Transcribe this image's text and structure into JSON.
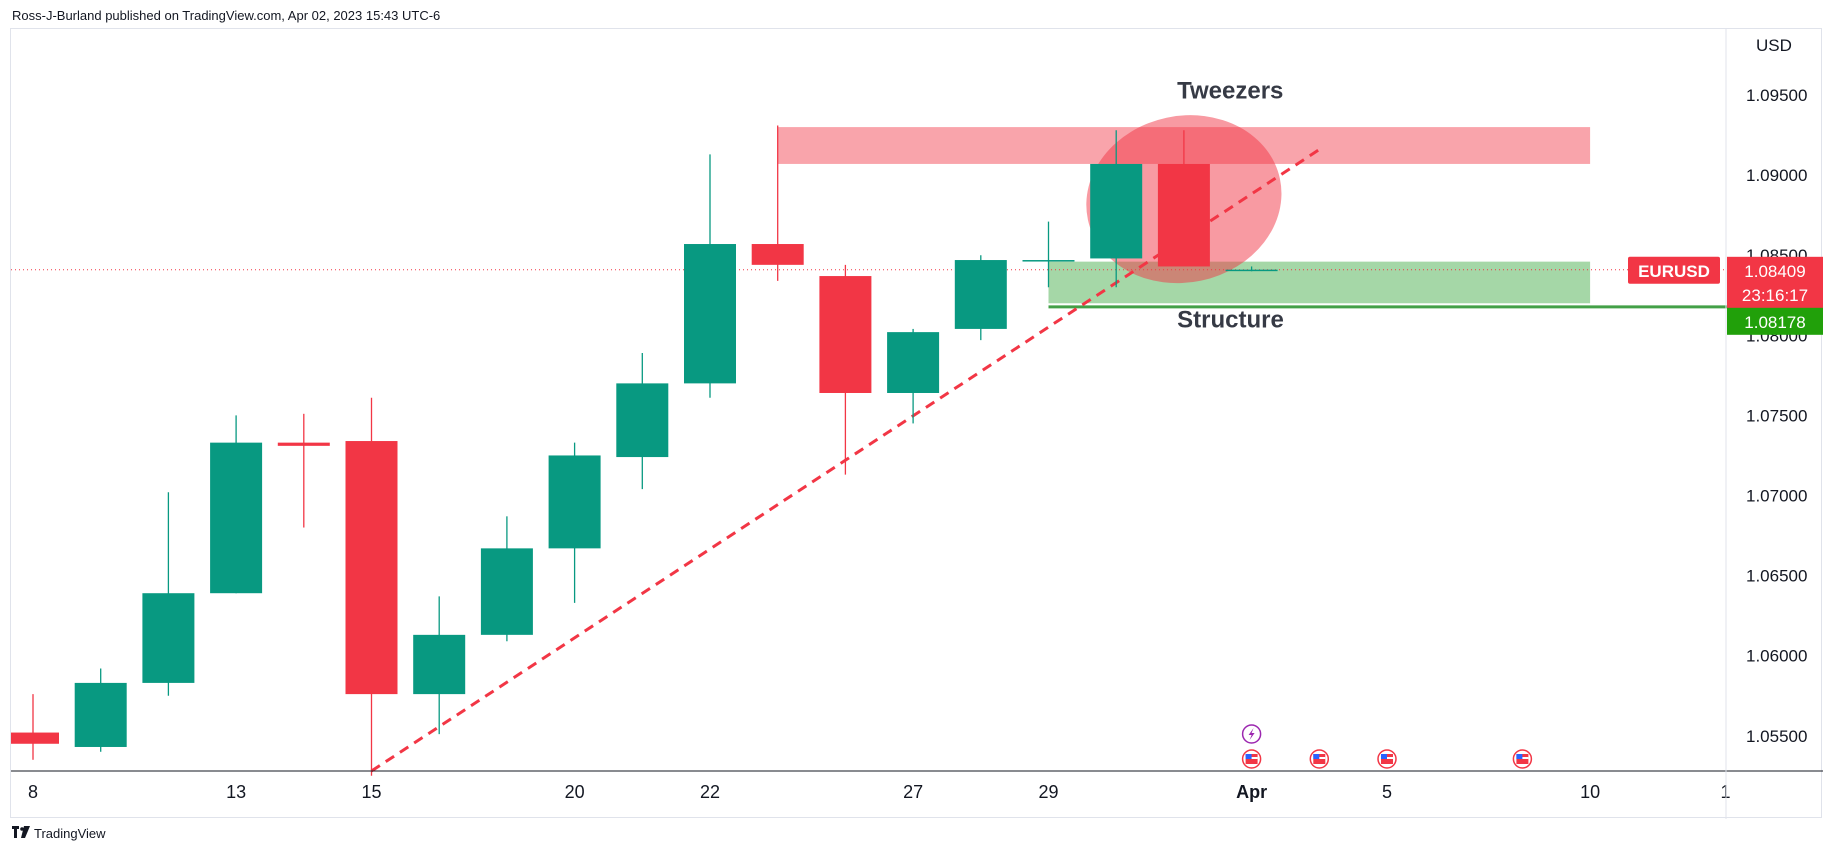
{
  "header": {
    "publisher_line": "Ross-J-Burland published on TradingView.com, Apr 02, 2023 15:43 UTC-6"
  },
  "footer": {
    "logo_icon": "tradingview-logo-icon",
    "brand": "TradingView"
  },
  "colors": {
    "bull": "#089981",
    "bear": "#f23645",
    "resistance_zone": "#f23645",
    "support_zone": "#4caf50",
    "trendline": "#f23645",
    "structure_line": "#43a047",
    "price_label_bg": "#f23645",
    "structure_label_bg": "#21a00a"
  },
  "chart_data": {
    "type": "candlestick",
    "symbol": "EURUSD",
    "currency_label": "USD",
    "ylim": [
      1.0528,
      1.0985
    ],
    "y_ticks": [
      "1.05500",
      "1.06000",
      "1.06500",
      "1.07000",
      "1.07500",
      "1.08000",
      "1.08500",
      "1.09000",
      "1.09500"
    ],
    "x_ticks": [
      {
        "index": 0,
        "label": "8"
      },
      {
        "index": 3,
        "label": "13"
      },
      {
        "index": 5,
        "label": "15"
      },
      {
        "index": 8,
        "label": "20"
      },
      {
        "index": 10,
        "label": "22"
      },
      {
        "index": 13,
        "label": "27"
      },
      {
        "index": 15,
        "label": "29"
      },
      {
        "index": 18,
        "label": "Apr",
        "bold": true
      },
      {
        "index": 20,
        "label": "5"
      },
      {
        "index": 23,
        "label": "10"
      },
      {
        "index": 25,
        "label": "1"
      }
    ],
    "candles": [
      {
        "date": "Mar 08",
        "open": 1.0552,
        "high": 1.0576,
        "low": 1.0535,
        "close": 1.0545
      },
      {
        "date": "Mar 09",
        "open": 1.0543,
        "high": 1.0592,
        "low": 1.054,
        "close": 1.0583
      },
      {
        "date": "Mar 10",
        "open": 1.0583,
        "high": 1.0702,
        "low": 1.0575,
        "close": 1.0639
      },
      {
        "date": "Mar 13",
        "open": 1.0639,
        "high": 1.075,
        "low": 1.0639,
        "close": 1.0733
      },
      {
        "date": "Mar 14",
        "open": 1.0733,
        "high": 1.0751,
        "low": 1.068,
        "close": 1.0731
      },
      {
        "date": "Mar 15",
        "open": 1.0734,
        "high": 1.0761,
        "low": 1.0525,
        "close": 1.0576
      },
      {
        "date": "Mar 16",
        "open": 1.0576,
        "high": 1.0637,
        "low": 1.0551,
        "close": 1.0613
      },
      {
        "date": "Mar 17",
        "open": 1.0613,
        "high": 1.0687,
        "low": 1.0609,
        "close": 1.0667
      },
      {
        "date": "Mar 20",
        "open": 1.0667,
        "high": 1.0733,
        "low": 1.0633,
        "close": 1.0725
      },
      {
        "date": "Mar 21",
        "open": 1.0724,
        "high": 1.0789,
        "low": 1.0704,
        "close": 1.077
      },
      {
        "date": "Mar 22",
        "open": 1.077,
        "high": 1.0913,
        "low": 1.0761,
        "close": 1.0857
      },
      {
        "date": "Mar 23",
        "open": 1.0857,
        "high": 1.0931,
        "low": 1.0834,
        "close": 1.0844
      },
      {
        "date": "Mar 24",
        "open": 1.0837,
        "high": 1.0844,
        "low": 1.0713,
        "close": 1.0764
      },
      {
        "date": "Mar 27",
        "open": 1.0764,
        "high": 1.0804,
        "low": 1.0745,
        "close": 1.0802
      },
      {
        "date": "Mar 28",
        "open": 1.0804,
        "high": 1.085,
        "low": 1.0797,
        "close": 1.0847
      },
      {
        "date": "Mar 29",
        "open": 1.0847,
        "high": 1.0871,
        "low": 1.083,
        "close": 1.0847
      },
      {
        "date": "Mar 30",
        "open": 1.0848,
        "high": 1.0928,
        "low": 1.083,
        "close": 1.0907
      },
      {
        "date": "Mar 31",
        "open": 1.0907,
        "high": 1.0928,
        "low": 1.0845,
        "close": 1.0843
      },
      {
        "date": "Apr 03",
        "open": 1.0841,
        "high": 1.0843,
        "low": 1.084,
        "close": 1.0841
      }
    ],
    "last_price": {
      "symbol": "EURUSD",
      "value": "1.08409",
      "countdown": "23:16:17",
      "price": 1.08409
    },
    "structure_level": {
      "value": "1.08178",
      "price": 1.08178
    },
    "resistance_zone": {
      "from_index": 11,
      "to_index": 23,
      "top": 1.093,
      "bottom": 1.0907
    },
    "support_zone": {
      "from_index": 15,
      "to_index": 23,
      "top": 1.0846,
      "bottom": 1.082
    },
    "trendline": {
      "start_index": 5,
      "start_price": 1.0528,
      "end_index": 19,
      "end_price": 1.0916
    },
    "annotations": [
      {
        "text": "Tweezers",
        "index": 16.9,
        "price": 1.0948,
        "anchor": "start"
      },
      {
        "text": "Structure",
        "index": 16.9,
        "price": 1.0805,
        "anchor": "start"
      }
    ],
    "highlight_ellipse": {
      "center_index": 17.0,
      "center_price": 1.0885,
      "rx_days": 1.45,
      "ry_price": 0.0052
    },
    "event_markers": [
      {
        "index": 18,
        "kind": "lightning-icon",
        "row": 1
      },
      {
        "index": 18,
        "kind": "us-flag-icon",
        "row": 0
      },
      {
        "index": 19,
        "kind": "us-flag-icon",
        "row": 0
      },
      {
        "index": 20,
        "kind": "us-flag-icon",
        "row": 0
      },
      {
        "index": 22,
        "kind": "us-flag-icon",
        "row": 0
      }
    ]
  }
}
